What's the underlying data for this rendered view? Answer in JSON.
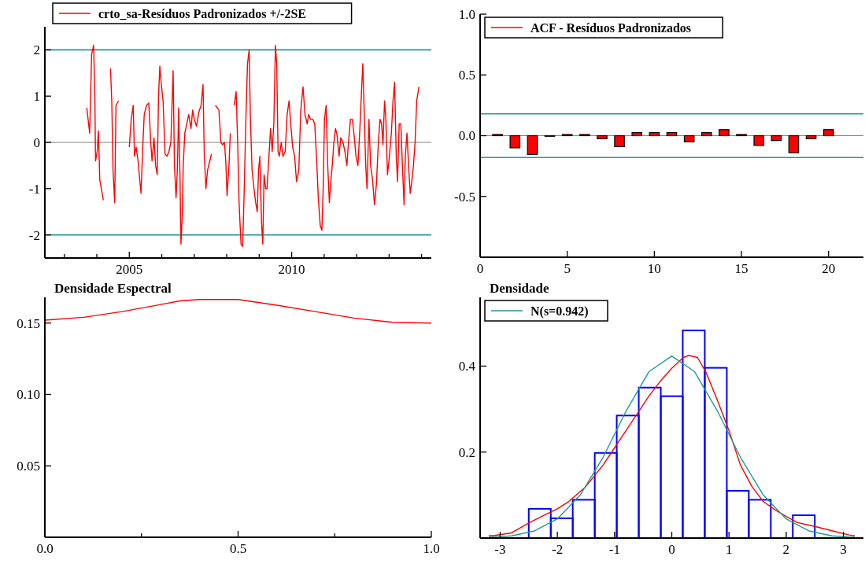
{
  "chart_data": [
    {
      "type": "line",
      "legend": "top",
      "xlim": [
        2002.4,
        2014.3
      ],
      "xticks": [
        {
          "value": 2003,
          "label": null
        },
        {
          "value": 2004,
          "label": null
        },
        2005,
        {
          "value": 2006,
          "label": null
        },
        {
          "value": 2007,
          "label": null
        },
        {
          "value": 2008,
          "label": null
        },
        {
          "value": 2009,
          "label": null
        },
        2010,
        {
          "value": 2011,
          "label": null
        },
        {
          "value": 2012,
          "label": null
        },
        {
          "value": 2013,
          "label": null
        },
        {
          "value": 2014,
          "label": null
        }
      ],
      "ylim": [
        -2.5,
        2.5
      ],
      "yticks": [
        -2,
        -1,
        0,
        1,
        2
      ],
      "ref_lines": [
        {
          "axis": "y",
          "value": 2,
          "color": "#1f9a96"
        },
        {
          "axis": "y",
          "value": -2,
          "color": "#1f9a96"
        },
        {
          "axis": "y",
          "value": 0,
          "color": "#808080"
        }
      ],
      "series": [
        {
          "name": "crto_sa-Resíduos Padronizados +/-2SE",
          "color": "#ff0000",
          "x": [
            2003.69,
            2003.78,
            2003.84,
            2003.9,
            2003.94,
            2003.96,
            2004.01,
            2004.05,
            2004.09,
            2004.14,
            2004.2,
            2004.3,
            2004.42,
            2004.46,
            2004.5,
            2004.55,
            2004.59,
            2004.63,
            2004.67,
            2004.8,
            2005.0,
            2005.06,
            2005.12,
            2005.16,
            2005.21,
            2005.27,
            2005.32,
            2005.36,
            2005.42,
            2005.46,
            2005.53,
            2005.6,
            2005.66,
            2005.7,
            2005.76,
            2005.81,
            2005.86,
            2005.9,
            2005.94,
            2005.98,
            2006.04,
            2006.1,
            2006.16,
            2006.22,
            2006.28,
            2006.32,
            2006.35,
            2006.39,
            2006.44,
            2006.48,
            2006.52,
            2006.56,
            2006.59,
            2006.63,
            2006.66,
            2006.71,
            2006.77,
            2006.83,
            2006.9,
            2006.95,
            2007.0,
            2007.07,
            2007.14,
            2007.21,
            2007.27,
            2007.31,
            2007.36,
            2007.41,
            2007.48,
            2007.53,
            2007.58,
            2007.65,
            2007.76,
            2007.82,
            2007.87,
            2007.93,
            2007.97,
            2008.01,
            2008.07,
            2008.11,
            2008.17,
            2008.23,
            2008.29,
            2008.34,
            2008.38,
            2008.44,
            2008.49,
            2008.54,
            2008.59,
            2008.64,
            2008.69,
            2008.73,
            2008.78,
            2008.84,
            2008.89,
            2008.94,
            2008.98,
            2009.02,
            2009.07,
            2009.11,
            2009.15,
            2009.2,
            2009.24,
            2009.3,
            2009.35,
            2009.4,
            2009.45,
            2009.5,
            2009.54,
            2009.58,
            2009.62,
            2009.68,
            2009.73,
            2009.8,
            2009.86,
            2009.92,
            2009.97,
            2010.03,
            2010.09,
            2010.15,
            2010.22,
            2010.28,
            2010.35,
            2010.41,
            2010.48,
            2010.52,
            2010.58,
            2010.65,
            2010.71,
            2010.77,
            2010.82,
            2010.88,
            2010.93,
            2010.97,
            2011.01,
            2011.06,
            2011.11,
            2011.16,
            2011.2,
            2011.25,
            2011.3,
            2011.35,
            2011.4,
            2011.46,
            2011.51,
            2011.58,
            2011.64,
            2011.7,
            2011.75,
            2011.81,
            2011.87,
            2011.93,
            2011.98,
            2012.04,
            2012.1,
            2012.15,
            2012.19,
            2012.24,
            2012.28,
            2012.32,
            2012.38,
            2012.43,
            2012.49,
            2012.55,
            2012.61,
            2012.67,
            2012.72,
            2012.77,
            2012.81,
            2012.86,
            2012.9,
            2012.95,
            2013.01,
            2013.07,
            2013.12,
            2013.17,
            2013.22,
            2013.26,
            2013.31,
            2013.36,
            2013.41,
            2013.46,
            2013.5,
            2013.55,
            2013.6,
            2013.65,
            2013.69,
            2013.75,
            2013.8,
            2013.85,
            2013.92
          ],
          "values": [
            0.75,
            0.2,
            1.9,
            2.1,
            1.0,
            -0.4,
            -0.2,
            0.25,
            -0.8,
            -1.0,
            -1.25,
            null,
            1.6,
            0.9,
            -0.6,
            -1.3,
            0.8,
            0.85,
            0.9,
            null,
            -0.1,
            0.5,
            0.8,
            -0.3,
            -0.1,
            -0.4,
            -0.8,
            -1.1,
            0.0,
            0.6,
            0.8,
            0.85,
            0.0,
            -0.4,
            0.1,
            -0.5,
            -0.7,
            1.0,
            1.65,
            1.3,
            0.9,
            -0.25,
            -0.3,
            -0.2,
            0.0,
            0.9,
            1.55,
            -0.5,
            -1.2,
            -0.6,
            0.75,
            -0.7,
            -2.2,
            -1.6,
            -0.5,
            0.2,
            0.4,
            0.6,
            0.3,
            0.7,
            0.5,
            0.35,
            0.65,
            0.8,
            1.25,
            -0.3,
            -1.0,
            -0.6,
            -0.4,
            -0.25,
            null,
            0.8,
            0.7,
            0.0,
            -0.05,
            0.0,
            -0.4,
            -1.15,
            -0.5,
            0.2,
            null,
            0.8,
            1.1,
            -0.1,
            -1.3,
            -2.2,
            -2.25,
            -1.0,
            0.5,
            1.7,
            2.0,
            0.5,
            -0.6,
            -1.0,
            -1.3,
            -1.5,
            -0.6,
            -0.3,
            -1.7,
            -2.2,
            -0.7,
            -1.0,
            -1.0,
            -0.3,
            0.3,
            -0.2,
            0.4,
            2.1,
            1.7,
            -0.2,
            -0.3,
            0.0,
            -0.3,
            -0.2,
            0.6,
            0.9,
            0.4,
            -0.1,
            -0.3,
            -0.85,
            -0.6,
            0.7,
            1.2,
            0.6,
            0.4,
            0.6,
            0.5,
            0.5,
            0.4,
            -0.4,
            -1.2,
            -1.8,
            -1.9,
            -1.0,
            0.5,
            0.8,
            -0.5,
            -1.3,
            -0.9,
            -0.5,
            0.0,
            0.3,
            0.15,
            -0.3,
            0.1,
            0.0,
            -0.2,
            -0.5,
            0.0,
            0.5,
            0.5,
            0.1,
            -0.3,
            -0.5,
            0.3,
            1.1,
            1.7,
            0.5,
            -0.5,
            -1.0,
            0.5,
            -0.5,
            -0.8,
            -1.35,
            -0.9,
            0.0,
            0.5,
            0.4,
            -0.05,
            0.9,
            0.5,
            -0.7,
            -0.3,
            0.2,
            0.9,
            1.3,
            -0.3,
            -0.85,
            0.4,
            0.4,
            -0.5,
            -1.35,
            -0.3,
            0.2,
            -0.5,
            -1.1,
            -0.9,
            -0.5,
            0.0,
            0.9,
            1.2
          ]
        }
      ]
    },
    {
      "type": "bar",
      "legend": "top left",
      "xlim": [
        0,
        22
      ],
      "xticks": [
        0,
        5,
        10,
        15,
        20
      ],
      "ylim": [
        -1,
        1
      ],
      "yticks": [
        -0.5,
        {
          "value": 0,
          "label": "0.0"
        },
        0.5,
        {
          "value": 1,
          "label": "1.0"
        }
      ],
      "ref_lines": [
        {
          "axis": "y",
          "value": 0.18,
          "color": "#1f9a96"
        },
        {
          "axis": "y",
          "value": -0.18,
          "color": "#1f9a96"
        },
        {
          "axis": "y",
          "value": 0,
          "color": "#808080"
        }
      ],
      "series": [
        {
          "name": "ACF - Resíduos Padronizados",
          "color": "#ff0000",
          "x": [
            1,
            2,
            3,
            4,
            5,
            6,
            7,
            8,
            9,
            10,
            11,
            12,
            13,
            14,
            15,
            16,
            17,
            18,
            19,
            20
          ],
          "values": [
            0.01,
            -0.1,
            -0.155,
            -0.005,
            0.01,
            0.01,
            -0.025,
            -0.09,
            0.025,
            0.025,
            0.025,
            -0.05,
            0.025,
            0.05,
            0.01,
            -0.08,
            -0.04,
            -0.14,
            -0.025,
            0.05
          ]
        }
      ]
    },
    {
      "type": "line",
      "title": "Densidade Espectral",
      "xlim": [
        0,
        1
      ],
      "xticks": [
        {
          "value": 0,
          "label": "0.0"
        },
        {
          "value": 0.25,
          "label": null
        },
        0.5,
        {
          "value": 0.75,
          "label": null
        },
        {
          "value": 1,
          "label": "1.0"
        }
      ],
      "ylim": [
        0,
        0.168
      ],
      "yticks": [
        0.05,
        {
          "value": 0.1,
          "label": "0.10"
        },
        0.15
      ],
      "series": [
        {
          "color": "#ff0000",
          "x": [
            0,
            0.1,
            0.2,
            0.3,
            0.35,
            0.4,
            0.5,
            0.6,
            0.7,
            0.8,
            0.9,
            1.0
          ],
          "values": [
            0.152,
            0.154,
            0.158,
            0.163,
            0.1655,
            0.1665,
            0.1665,
            0.1625,
            0.158,
            0.1535,
            0.1505,
            0.15
          ]
        }
      ]
    },
    {
      "type": "histogram",
      "title": "Densidade",
      "legend": "top left",
      "xlim": [
        -3.35,
        3.35
      ],
      "xticks": [
        -3,
        -2,
        -1,
        0,
        1,
        2,
        3
      ],
      "ylim": [
        0,
        0.56
      ],
      "yticks": [
        0.2,
        0.4
      ],
      "color": "#0000ff",
      "bins": [
        -2.5,
        -2.115,
        -1.731,
        -1.346,
        -0.962,
        -0.577,
        -0.192,
        0.192,
        0.577,
        0.962,
        1.346,
        1.731,
        2.115,
        2.5
      ],
      "values": [
        0.068,
        0.046,
        0.089,
        0.198,
        0.285,
        0.35,
        0.33,
        0.483,
        0.396,
        0.11,
        0.089,
        0,
        0.053
      ],
      "series": [
        {
          "type": "line",
          "color": "#ff0000",
          "x": [
            -3.2,
            -3.1,
            -2.8,
            -2.5,
            -2.2,
            -2.0,
            -1.8,
            -1.5,
            -1.2,
            -1.0,
            -0.8,
            -0.6,
            -0.4,
            -0.2,
            0.0,
            0.2,
            0.3,
            0.45,
            0.6,
            0.8,
            1.0,
            1.2,
            1.4,
            1.6,
            1.8,
            2.0,
            2.2,
            2.5,
            2.8,
            3.1,
            3.2
          ],
          "values": [
            0.005,
            0.006,
            0.012,
            0.035,
            0.055,
            0.068,
            0.085,
            0.12,
            0.17,
            0.21,
            0.25,
            0.29,
            0.33,
            0.365,
            0.395,
            0.42,
            0.425,
            0.42,
            0.385,
            0.32,
            0.25,
            0.17,
            0.12,
            0.085,
            0.066,
            0.05,
            0.036,
            0.027,
            0.017,
            0.007,
            0.005
          ]
        },
        {
          "type": "line",
          "name": "N(s=0.942)",
          "color": "#1f9a96",
          "x": [
            -3.2,
            -2.8,
            -2.4,
            -2.0,
            -1.6,
            -1.2,
            -0.8,
            -0.4,
            0,
            0.4,
            0.8,
            1.2,
            1.6,
            2.0,
            2.4,
            2.8,
            3.2
          ],
          "values": [
            0.0013,
            0.0051,
            0.0165,
            0.0444,
            0.1,
            0.188,
            0.295,
            0.387,
            0.4235,
            0.387,
            0.295,
            0.188,
            0.1,
            0.0444,
            0.0165,
            0.0051,
            0.0013
          ]
        }
      ]
    }
  ]
}
